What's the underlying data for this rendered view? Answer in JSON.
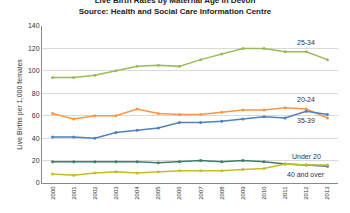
{
  "chart_data": {
    "type": "line",
    "title": "Live Birth Rates by Maternal Age in Devon",
    "subtitle": "Source: Health and Social Care Information Centre",
    "y_label": "Live Births per 1,000 females",
    "categories": [
      "2000",
      "2001",
      "2002",
      "2003",
      "2004",
      "2005",
      "2006",
      "2007",
      "2008",
      "2009",
      "2010",
      "2011",
      "2012",
      "2013"
    ],
    "series": [
      {
        "name": "25-34",
        "color": "#9bbb59",
        "values": [
          94,
          94,
          96,
          100,
          104,
          105,
          104,
          110,
          115,
          120,
          120,
          117,
          117,
          110
        ]
      },
      {
        "name": "20-24",
        "color": "#f79646",
        "values": [
          62,
          57,
          60,
          60,
          66,
          62,
          61,
          61,
          63,
          65,
          65,
          67,
          66,
          58
        ]
      },
      {
        "name": "35-39",
        "color": "#4f81bd",
        "values": [
          41,
          41,
          40,
          45,
          47,
          49,
          54,
          54,
          55,
          57,
          59,
          58,
          64,
          61
        ]
      },
      {
        "name": "Under 20",
        "color": "#3f7f6a",
        "values": [
          19,
          19,
          19,
          19,
          19,
          18,
          19,
          20,
          19,
          20,
          19,
          17,
          16,
          15
        ]
      },
      {
        "name": "40 and over",
        "color": "#c4bd2a",
        "values": [
          8,
          7,
          9,
          10,
          9,
          10,
          11,
          11,
          11,
          12,
          13,
          17,
          16,
          16
        ]
      }
    ],
    "ylim": [
      0,
      140
    ],
    "yticks": [
      0,
      20,
      40,
      60,
      80,
      100,
      120,
      140
    ],
    "grid": true,
    "marker": "circle"
  }
}
